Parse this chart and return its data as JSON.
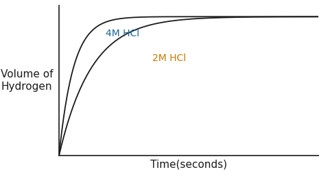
{
  "title": "",
  "xlabel": "Time(seconds)",
  "ylabel": "Volume of\nHydrogen",
  "label_4M": "4M HCl",
  "label_2M": "2M HCl",
  "color_4M": "#1a6496",
  "color_2M": "#c87800",
  "curve_color": "#1a1a1a",
  "background_color": "#ffffff",
  "xlabel_fontsize": 11,
  "ylabel_fontsize": 11,
  "label_fontsize": 10,
  "asymptote_4M": 1.0,
  "asymptote_2M": 1.0,
  "rate_4M": 0.18,
  "rate_2M": 0.08,
  "x_max": 100,
  "y_max": 1.08
}
